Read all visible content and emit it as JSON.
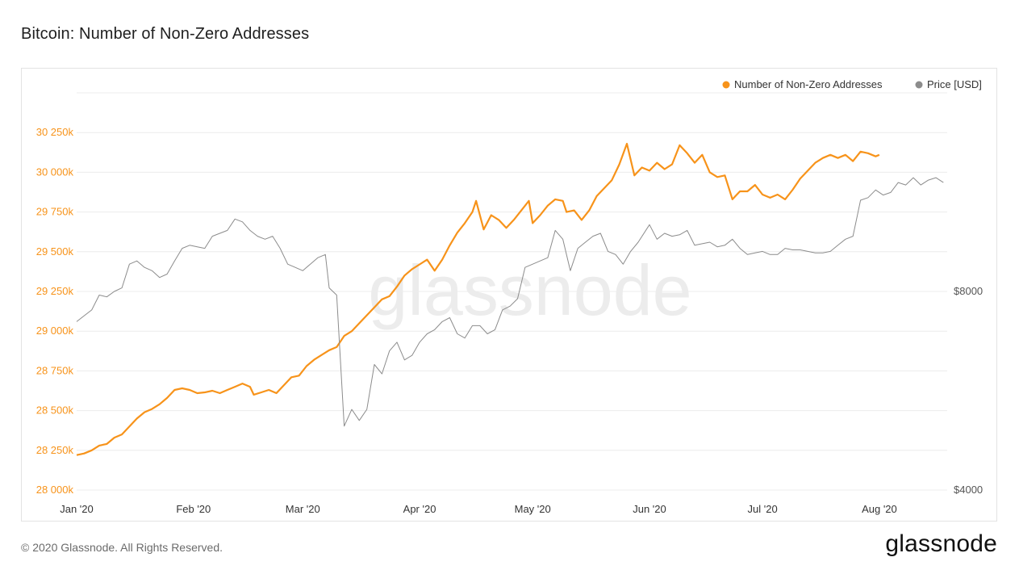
{
  "header": {
    "title": "Bitcoin: Number of Non-Zero Addresses"
  },
  "footer": {
    "copyright": "© 2020 Glassnode. All Rights Reserved.",
    "logo": "glassnode"
  },
  "watermark": "glassnode",
  "colors": {
    "addresses": "#f7931a",
    "price": "#8c8c8c",
    "grid": "#ececec",
    "frame": "#e3e3e3",
    "watermark": "#ececec"
  },
  "chart_data": {
    "type": "line",
    "title": "Bitcoin: Number of Non-Zero Addresses",
    "legend": {
      "placement": "top-right",
      "entries": [
        "Number of Non-Zero Addresses",
        "Price [USD]"
      ]
    },
    "grid": true,
    "x_ticks": [
      "Jan '20",
      "Feb '20",
      "Mar '20",
      "Apr '20",
      "May '20",
      "Jun '20",
      "Jul '20",
      "Aug '20"
    ],
    "x_range": [
      "2020-01-01",
      "2020-08-19"
    ],
    "y_left": {
      "ticks": [
        "28 000k",
        "28 250k",
        "28 500k",
        "28 750k",
        "29 000k",
        "29 250k",
        "29 500k",
        "29 750k",
        "30 000k",
        "30 250k"
      ],
      "range": [
        28000000,
        30500000
      ]
    },
    "y_right": {
      "ticks": [
        "$4000",
        "$8000"
      ],
      "scale": "log",
      "range": [
        4000,
        16000
      ]
    },
    "series": [
      {
        "name": "Number of Non-Zero Addresses",
        "axis": "left",
        "points": [
          [
            "2020-01-01",
            28220000
          ],
          [
            "2020-01-03",
            28230000
          ],
          [
            "2020-01-05",
            28250000
          ],
          [
            "2020-01-07",
            28280000
          ],
          [
            "2020-01-09",
            28290000
          ],
          [
            "2020-01-11",
            28330000
          ],
          [
            "2020-01-13",
            28350000
          ],
          [
            "2020-01-15",
            28400000
          ],
          [
            "2020-01-17",
            28450000
          ],
          [
            "2020-01-19",
            28490000
          ],
          [
            "2020-01-21",
            28510000
          ],
          [
            "2020-01-23",
            28540000
          ],
          [
            "2020-01-25",
            28580000
          ],
          [
            "2020-01-27",
            28630000
          ],
          [
            "2020-01-29",
            28640000
          ],
          [
            "2020-01-31",
            28630000
          ],
          [
            "2020-02-02",
            28610000
          ],
          [
            "2020-02-04",
            28615000
          ],
          [
            "2020-02-06",
            28625000
          ],
          [
            "2020-02-08",
            28610000
          ],
          [
            "2020-02-10",
            28630000
          ],
          [
            "2020-02-12",
            28650000
          ],
          [
            "2020-02-14",
            28670000
          ],
          [
            "2020-02-16",
            28650000
          ],
          [
            "2020-02-17",
            28600000
          ],
          [
            "2020-02-19",
            28615000
          ],
          [
            "2020-02-21",
            28630000
          ],
          [
            "2020-02-23",
            28610000
          ],
          [
            "2020-02-25",
            28660000
          ],
          [
            "2020-02-27",
            28710000
          ],
          [
            "2020-02-29",
            28720000
          ],
          [
            "2020-03-02",
            28780000
          ],
          [
            "2020-03-04",
            28820000
          ],
          [
            "2020-03-06",
            28850000
          ],
          [
            "2020-03-08",
            28880000
          ],
          [
            "2020-03-10",
            28900000
          ],
          [
            "2020-03-12",
            28970000
          ],
          [
            "2020-03-14",
            29000000
          ],
          [
            "2020-03-16",
            29050000
          ],
          [
            "2020-03-18",
            29100000
          ],
          [
            "2020-03-20",
            29150000
          ],
          [
            "2020-03-22",
            29200000
          ],
          [
            "2020-03-24",
            29220000
          ],
          [
            "2020-03-26",
            29280000
          ],
          [
            "2020-03-28",
            29350000
          ],
          [
            "2020-03-30",
            29390000
          ],
          [
            "2020-04-01",
            29420000
          ],
          [
            "2020-04-03",
            29450000
          ],
          [
            "2020-04-05",
            29380000
          ],
          [
            "2020-04-07",
            29450000
          ],
          [
            "2020-04-09",
            29540000
          ],
          [
            "2020-04-11",
            29620000
          ],
          [
            "2020-04-13",
            29680000
          ],
          [
            "2020-04-15",
            29750000
          ],
          [
            "2020-04-16",
            29820000
          ],
          [
            "2020-04-18",
            29640000
          ],
          [
            "2020-04-20",
            29730000
          ],
          [
            "2020-04-22",
            29700000
          ],
          [
            "2020-04-24",
            29650000
          ],
          [
            "2020-04-26",
            29700000
          ],
          [
            "2020-04-28",
            29760000
          ],
          [
            "2020-04-30",
            29820000
          ],
          [
            "2020-05-01",
            29680000
          ],
          [
            "2020-05-03",
            29730000
          ],
          [
            "2020-05-05",
            29790000
          ],
          [
            "2020-05-07",
            29830000
          ],
          [
            "2020-05-09",
            29820000
          ],
          [
            "2020-05-10",
            29750000
          ],
          [
            "2020-05-12",
            29760000
          ],
          [
            "2020-05-14",
            29700000
          ],
          [
            "2020-05-16",
            29760000
          ],
          [
            "2020-05-18",
            29850000
          ],
          [
            "2020-05-20",
            29900000
          ],
          [
            "2020-05-22",
            29950000
          ],
          [
            "2020-05-24",
            30050000
          ],
          [
            "2020-05-26",
            30180000
          ],
          [
            "2020-05-28",
            29980000
          ],
          [
            "2020-05-30",
            30030000
          ],
          [
            "2020-06-01",
            30010000
          ],
          [
            "2020-06-03",
            30060000
          ],
          [
            "2020-06-05",
            30020000
          ],
          [
            "2020-06-07",
            30050000
          ],
          [
            "2020-06-09",
            30170000
          ],
          [
            "2020-06-11",
            30120000
          ],
          [
            "2020-06-13",
            30060000
          ],
          [
            "2020-06-15",
            30110000
          ],
          [
            "2020-06-17",
            30000000
          ],
          [
            "2020-06-19",
            29970000
          ],
          [
            "2020-06-21",
            29980000
          ],
          [
            "2020-06-23",
            29830000
          ],
          [
            "2020-06-25",
            29880000
          ],
          [
            "2020-06-27",
            29880000
          ],
          [
            "2020-06-29",
            29920000
          ],
          [
            "2020-07-01",
            29860000
          ],
          [
            "2020-07-03",
            29840000
          ],
          [
            "2020-07-05",
            29860000
          ],
          [
            "2020-07-07",
            29830000
          ],
          [
            "2020-07-09",
            29890000
          ],
          [
            "2020-07-11",
            29960000
          ],
          [
            "2020-07-13",
            30010000
          ],
          [
            "2020-07-15",
            30060000
          ],
          [
            "2020-07-17",
            30090000
          ],
          [
            "2020-07-19",
            30110000
          ],
          [
            "2020-07-21",
            30090000
          ],
          [
            "2020-07-23",
            30110000
          ],
          [
            "2020-07-25",
            30070000
          ],
          [
            "2020-07-27",
            30130000
          ],
          [
            "2020-07-29",
            30120000
          ],
          [
            "2020-07-31",
            30100000
          ],
          [
            "2020-08-01",
            30110000
          ]
        ]
      },
      {
        "name": "Price [USD]",
        "axis": "right",
        "points": [
          [
            "2020-01-01",
            7200
          ],
          [
            "2020-01-03",
            7350
          ],
          [
            "2020-01-05",
            7500
          ],
          [
            "2020-01-07",
            7900
          ],
          [
            "2020-01-09",
            7850
          ],
          [
            "2020-01-11",
            8000
          ],
          [
            "2020-01-13",
            8100
          ],
          [
            "2020-01-15",
            8800
          ],
          [
            "2020-01-17",
            8900
          ],
          [
            "2020-01-19",
            8700
          ],
          [
            "2020-01-21",
            8600
          ],
          [
            "2020-01-23",
            8400
          ],
          [
            "2020-01-25",
            8500
          ],
          [
            "2020-01-27",
            8900
          ],
          [
            "2020-01-29",
            9300
          ],
          [
            "2020-01-31",
            9400
          ],
          [
            "2020-02-02",
            9350
          ],
          [
            "2020-02-04",
            9300
          ],
          [
            "2020-02-06",
            9700
          ],
          [
            "2020-02-08",
            9800
          ],
          [
            "2020-02-10",
            9900
          ],
          [
            "2020-02-12",
            10300
          ],
          [
            "2020-02-14",
            10200
          ],
          [
            "2020-02-16",
            9900
          ],
          [
            "2020-02-18",
            9700
          ],
          [
            "2020-02-20",
            9600
          ],
          [
            "2020-02-22",
            9700
          ],
          [
            "2020-02-24",
            9300
          ],
          [
            "2020-02-26",
            8800
          ],
          [
            "2020-02-28",
            8700
          ],
          [
            "2020-03-01",
            8600
          ],
          [
            "2020-03-03",
            8800
          ],
          [
            "2020-03-05",
            9000
          ],
          [
            "2020-03-07",
            9100
          ],
          [
            "2020-03-08",
            8100
          ],
          [
            "2020-03-10",
            7900
          ],
          [
            "2020-03-12",
            5000
          ],
          [
            "2020-03-14",
            5300
          ],
          [
            "2020-03-16",
            5100
          ],
          [
            "2020-03-18",
            5300
          ],
          [
            "2020-03-20",
            6200
          ],
          [
            "2020-03-22",
            6000
          ],
          [
            "2020-03-24",
            6500
          ],
          [
            "2020-03-26",
            6700
          ],
          [
            "2020-03-28",
            6300
          ],
          [
            "2020-03-30",
            6400
          ],
          [
            "2020-04-01",
            6700
          ],
          [
            "2020-04-03",
            6900
          ],
          [
            "2020-04-05",
            7000
          ],
          [
            "2020-04-07",
            7200
          ],
          [
            "2020-04-09",
            7300
          ],
          [
            "2020-04-11",
            6900
          ],
          [
            "2020-04-13",
            6800
          ],
          [
            "2020-04-15",
            7100
          ],
          [
            "2020-04-17",
            7100
          ],
          [
            "2020-04-19",
            6900
          ],
          [
            "2020-04-21",
            7000
          ],
          [
            "2020-04-23",
            7500
          ],
          [
            "2020-04-25",
            7600
          ],
          [
            "2020-04-27",
            7800
          ],
          [
            "2020-04-29",
            8700
          ],
          [
            "2020-05-01",
            8800
          ],
          [
            "2020-05-03",
            8900
          ],
          [
            "2020-05-05",
            9000
          ],
          [
            "2020-05-07",
            9900
          ],
          [
            "2020-05-09",
            9600
          ],
          [
            "2020-05-11",
            8600
          ],
          [
            "2020-05-13",
            9300
          ],
          [
            "2020-05-15",
            9500
          ],
          [
            "2020-05-17",
            9700
          ],
          [
            "2020-05-19",
            9800
          ],
          [
            "2020-05-21",
            9200
          ],
          [
            "2020-05-23",
            9100
          ],
          [
            "2020-05-25",
            8800
          ],
          [
            "2020-05-27",
            9200
          ],
          [
            "2020-05-29",
            9500
          ],
          [
            "2020-06-01",
            10100
          ],
          [
            "2020-06-03",
            9600
          ],
          [
            "2020-06-05",
            9800
          ],
          [
            "2020-06-07",
            9700
          ],
          [
            "2020-06-09",
            9750
          ],
          [
            "2020-06-11",
            9900
          ],
          [
            "2020-06-13",
            9400
          ],
          [
            "2020-06-15",
            9450
          ],
          [
            "2020-06-17",
            9500
          ],
          [
            "2020-06-19",
            9350
          ],
          [
            "2020-06-21",
            9400
          ],
          [
            "2020-06-23",
            9600
          ],
          [
            "2020-06-25",
            9300
          ],
          [
            "2020-06-27",
            9100
          ],
          [
            "2020-06-29",
            9150
          ],
          [
            "2020-07-01",
            9200
          ],
          [
            "2020-07-03",
            9100
          ],
          [
            "2020-07-05",
            9100
          ],
          [
            "2020-07-07",
            9300
          ],
          [
            "2020-07-09",
            9250
          ],
          [
            "2020-07-11",
            9250
          ],
          [
            "2020-07-13",
            9200
          ],
          [
            "2020-07-15",
            9150
          ],
          [
            "2020-07-17",
            9150
          ],
          [
            "2020-07-19",
            9200
          ],
          [
            "2020-07-21",
            9400
          ],
          [
            "2020-07-23",
            9600
          ],
          [
            "2020-07-25",
            9700
          ],
          [
            "2020-07-27",
            11000
          ],
          [
            "2020-07-29",
            11100
          ],
          [
            "2020-07-31",
            11400
          ],
          [
            "2020-08-02",
            11200
          ],
          [
            "2020-08-04",
            11300
          ],
          [
            "2020-08-06",
            11700
          ],
          [
            "2020-08-08",
            11600
          ],
          [
            "2020-08-10",
            11900
          ],
          [
            "2020-08-12",
            11600
          ],
          [
            "2020-08-14",
            11800
          ],
          [
            "2020-08-16",
            11900
          ],
          [
            "2020-08-18",
            11700
          ]
        ]
      }
    ]
  }
}
